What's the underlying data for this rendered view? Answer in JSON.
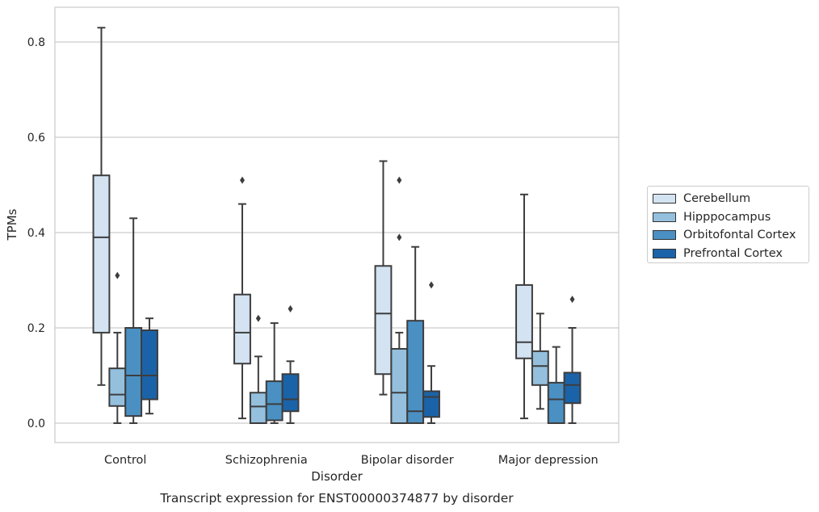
{
  "chart_data": {
    "type": "box",
    "title": "Transcript expression for ENST00000374877 by disorder",
    "xlabel": "Disorder",
    "ylabel": "TPMs",
    "ylim": [
      -0.04,
      0.875
    ],
    "yticks": [
      0.0,
      0.2,
      0.4,
      0.6,
      0.8
    ],
    "ytick_labels": [
      "0.0",
      "0.2",
      "0.4",
      "0.6",
      "0.8"
    ],
    "grid": "horizontal",
    "legend_position": "right",
    "categories": [
      "Control",
      "Schizophrenia",
      "Bipolar disorder",
      "Major depression"
    ],
    "series": [
      {
        "name": "Cerebellum",
        "color": "#d3e3f2",
        "boxes": [
          {
            "whisker_low": 0.08,
            "q1": 0.19,
            "median": 0.39,
            "q3": 0.52,
            "whisker_high": 0.83,
            "outliers": []
          },
          {
            "whisker_low": 0.01,
            "q1": 0.125,
            "median": 0.19,
            "q3": 0.27,
            "whisker_high": 0.46,
            "outliers": [
              0.51
            ]
          },
          {
            "whisker_low": 0.06,
            "q1": 0.103,
            "median": 0.23,
            "q3": 0.33,
            "whisker_high": 0.55,
            "outliers": []
          },
          {
            "whisker_low": 0.01,
            "q1": 0.136,
            "median": 0.17,
            "q3": 0.29,
            "whisker_high": 0.48,
            "outliers": []
          }
        ]
      },
      {
        "name": "Hipppocampus",
        "color": "#94c0de",
        "boxes": [
          {
            "whisker_low": 0.0,
            "q1": 0.036,
            "median": 0.06,
            "q3": 0.115,
            "whisker_high": 0.19,
            "outliers": [
              0.31
            ]
          },
          {
            "whisker_low": 0.0,
            "q1": 0.0,
            "median": 0.035,
            "q3": 0.064,
            "whisker_high": 0.14,
            "outliers": [
              0.22
            ]
          },
          {
            "whisker_low": 0.0,
            "q1": 0.0,
            "median": 0.064,
            "q3": 0.156,
            "whisker_high": 0.19,
            "outliers": [
              0.39,
              0.51
            ]
          },
          {
            "whisker_low": 0.03,
            "q1": 0.08,
            "median": 0.12,
            "q3": 0.151,
            "whisker_high": 0.23,
            "outliers": []
          }
        ]
      },
      {
        "name": "Orbitofontal Cortex",
        "color": "#4a90c3",
        "boxes": [
          {
            "whisker_low": 0.0,
            "q1": 0.015,
            "median": 0.1,
            "q3": 0.2,
            "whisker_high": 0.43,
            "outliers": []
          },
          {
            "whisker_low": 0.0,
            "q1": 0.006,
            "median": 0.04,
            "q3": 0.088,
            "whisker_high": 0.21,
            "outliers": []
          },
          {
            "whisker_low": 0.0,
            "q1": 0.0,
            "median": 0.025,
            "q3": 0.215,
            "whisker_high": 0.37,
            "outliers": []
          },
          {
            "whisker_low": 0.0,
            "q1": 0.0,
            "median": 0.05,
            "q3": 0.085,
            "whisker_high": 0.16,
            "outliers": []
          }
        ]
      },
      {
        "name": "Prefrontal Cortex",
        "color": "#1b63a8",
        "boxes": [
          {
            "whisker_low": 0.02,
            "q1": 0.05,
            "median": 0.1,
            "q3": 0.195,
            "whisker_high": 0.22,
            "outliers": []
          },
          {
            "whisker_low": 0.0,
            "q1": 0.025,
            "median": 0.05,
            "q3": 0.103,
            "whisker_high": 0.13,
            "outliers": [
              0.24
            ]
          },
          {
            "whisker_low": 0.0,
            "q1": 0.013,
            "median": 0.055,
            "q3": 0.067,
            "whisker_high": 0.12,
            "outliers": [
              0.29
            ]
          },
          {
            "whisker_low": 0.0,
            "q1": 0.042,
            "median": 0.08,
            "q3": 0.106,
            "whisker_high": 0.2,
            "outliers": [
              0.26
            ]
          }
        ]
      }
    ]
  }
}
